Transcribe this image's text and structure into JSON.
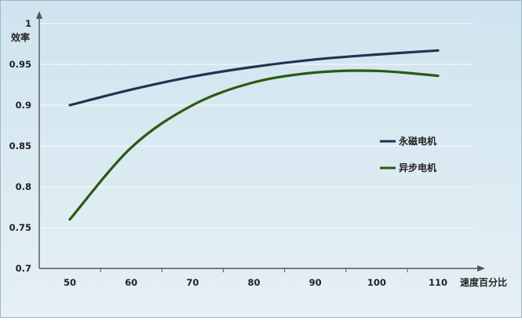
{
  "chart_data": {
    "type": "line",
    "ylabel": "效率",
    "xlabel": "速度百分比",
    "x": [
      50,
      60,
      70,
      80,
      90,
      100,
      110
    ],
    "ylim": [
      0.7,
      1.0
    ],
    "yticks": [
      0.7,
      0.75,
      0.8,
      0.85,
      0.9,
      0.95,
      1
    ],
    "ytick_labels": [
      "0.7",
      "0.75",
      "0.8",
      "0.85",
      "0.9",
      "0.95",
      "1"
    ],
    "xticks": [
      50,
      60,
      70,
      80,
      90,
      100,
      110
    ],
    "xtick_labels": [
      "50",
      "60",
      "70",
      "80",
      "90",
      "100",
      "110"
    ],
    "grid": true,
    "legend_position": "right",
    "series": [
      {
        "name": "永磁电机",
        "color": "#1f3550",
        "values": [
          0.9,
          0.919,
          0.935,
          0.947,
          0.956,
          0.962,
          0.967
        ]
      },
      {
        "name": "异步电机",
        "color": "#2a5a10",
        "values": [
          0.76,
          0.848,
          0.9,
          0.928,
          0.94,
          0.942,
          0.936
        ]
      }
    ]
  },
  "colors": {
    "plot_background_top": "#cfe4ef",
    "plot_background_bottom": "#e6f0f5",
    "gridline": "#f4f8fa",
    "axis": "#555555",
    "border": "#9fb6c2"
  }
}
